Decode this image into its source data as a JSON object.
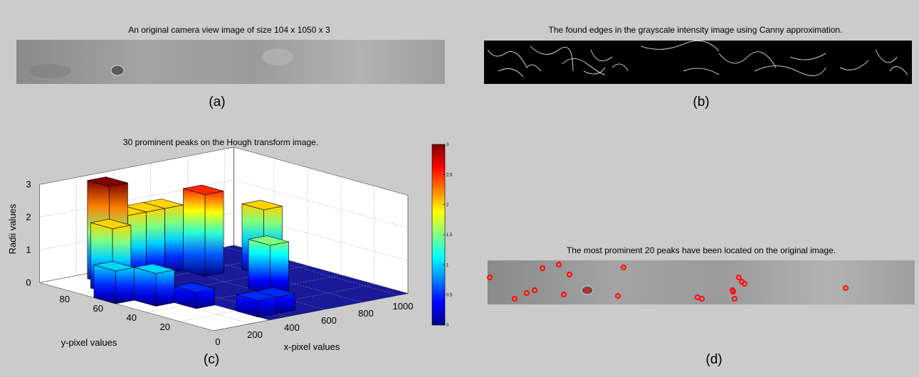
{
  "panels": {
    "a": {
      "title": "An original camera view image of size 104 x 1050 x 3",
      "label": "(a)"
    },
    "b": {
      "title": "The found edges in the grayscale intensity image using Canny approximation.",
      "label": "(b)"
    },
    "c": {
      "label": "(c)"
    },
    "d": {
      "title": "The most prominent 20 peaks have been located on the original image.",
      "label": "(d)"
    }
  },
  "chart_data": {
    "type": "bar3d",
    "title": "30 prominent peaks on the Hough transform image.",
    "xlabel": "x-pixel values",
    "ylabel": "y-pixel values",
    "zlabel": "Radii values",
    "xlim": [
      0,
      1050
    ],
    "ylim": [
      0,
      104
    ],
    "zlim": [
      0,
      3
    ],
    "xticks": [
      0,
      200,
      400,
      600,
      800,
      1000
    ],
    "yticks": [
      20,
      40,
      60,
      80
    ],
    "zticks": [
      0,
      1,
      2,
      3
    ],
    "colorbar_ticks": [
      0,
      0.5,
      1,
      1.5,
      2,
      2.5,
      3
    ],
    "x": [
      250,
      650,
      850,
      150,
      350,
      450,
      550,
      50,
      150,
      650,
      250,
      350,
      450
    ],
    "y": [
      91,
      78,
      65,
      78,
      91,
      91,
      91,
      65,
      52,
      39,
      39,
      13,
      13
    ],
    "values": [
      3,
      2.5,
      2,
      2,
      2,
      2,
      2,
      1,
      1,
      1.5,
      0.5,
      0.5,
      0.5
    ]
  }
}
